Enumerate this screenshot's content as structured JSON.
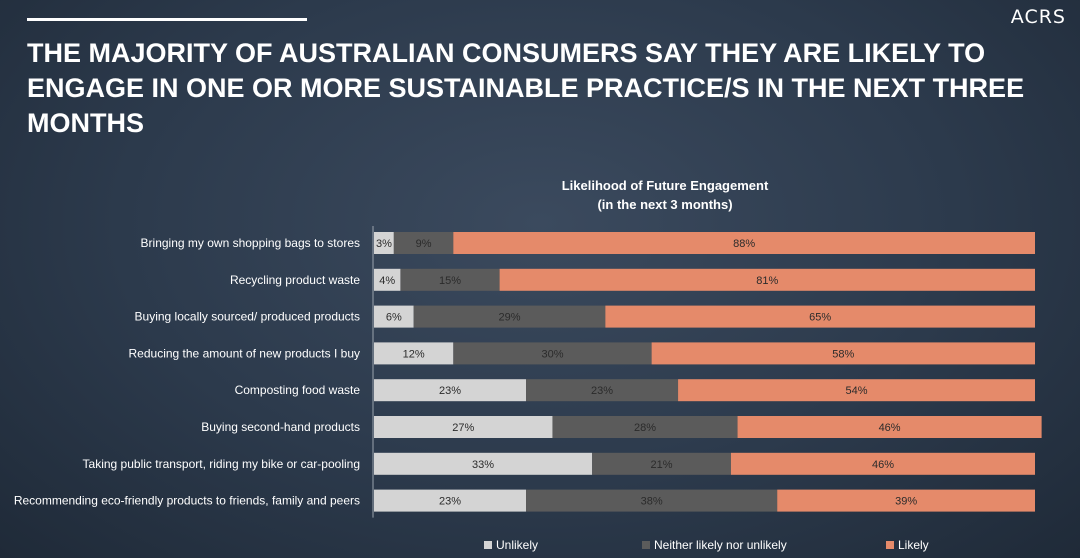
{
  "brand": "ACRS",
  "headline": "THE MAJORITY OF AUSTRALIAN CONSUMERS SAY THEY ARE LIKELY TO ENGAGE IN ONE OR MORE SUSTAINABLE PRACTICE/S IN THE NEXT THREE MONTHS",
  "colors": {
    "unlikely": "#d4d4d4",
    "neither": "#5b5b5b",
    "likely": "#e58a6a",
    "background": "#2c3a4c"
  },
  "chart_data": {
    "type": "bar",
    "orientation": "horizontal",
    "stacked": true,
    "title_line1": "Likelihood of Future Engagement",
    "title_line2": "(in the next 3 months)",
    "categories": [
      "Bringing my own shopping bags to stores",
      "Recycling product waste",
      "Buying locally sourced/ produced products",
      "Reducing the amount of new products I buy",
      "Composting food waste",
      "Buying second-hand products",
      "Taking public transport, riding my bike or car-pooling",
      "Recommending eco-friendly products to friends, family and peers"
    ],
    "series": [
      {
        "name": "Unlikely",
        "key": "unlikely",
        "values": [
          3,
          4,
          6,
          12,
          23,
          27,
          33,
          23
        ]
      },
      {
        "name": "Neither likely nor unlikely",
        "key": "neither",
        "values": [
          9,
          15,
          29,
          30,
          23,
          28,
          21,
          38
        ]
      },
      {
        "name": "Likely",
        "key": "likely",
        "values": [
          88,
          81,
          65,
          58,
          54,
          46,
          46,
          39
        ]
      }
    ],
    "unit": "%",
    "xlim": [
      0,
      100
    ],
    "legend_position": "bottom"
  }
}
